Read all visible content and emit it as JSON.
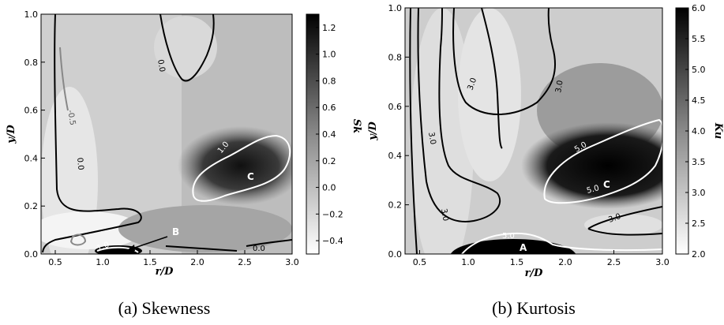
{
  "figure": {
    "caption_a": "(a) Skewness",
    "caption_b": "(b) Kurtosis"
  },
  "chart_data": [
    {
      "type": "heatmap",
      "panel": "a",
      "xlabel": "r/D",
      "ylabel": "y/D",
      "xlim": [
        0.35,
        3.0
      ],
      "ylim": [
        0.0,
        1.0
      ],
      "xticks": [
        "0.5",
        "1.0",
        "1.5",
        "2.0",
        "2.5",
        "3.0"
      ],
      "yticks": [
        "0.0",
        "0.2",
        "0.4",
        "0.6",
        "0.8",
        "1.0"
      ],
      "colorbar": {
        "label": "Sk",
        "range": [
          -0.5,
          1.3
        ],
        "ticks": [
          "1.2",
          "1.0",
          "0.8",
          "0.6",
          "0.4",
          "0.2",
          "0.0",
          "−0.2",
          "−0.4"
        ]
      },
      "contour_labels": [
        "0.0",
        "0.0",
        "0.0",
        "-0.5",
        "1.0",
        "1.0"
      ],
      "annotations": [
        "C",
        "B"
      ]
    },
    {
      "type": "heatmap",
      "panel": "b",
      "xlabel": "r/D",
      "ylabel": "y/D",
      "xlim": [
        0.35,
        3.0
      ],
      "ylim": [
        0.0,
        1.0
      ],
      "xticks": [
        "0.5",
        "1.0",
        "1.5",
        "2.0",
        "2.5",
        "3.0"
      ],
      "yticks": [
        "0.0",
        "0.2",
        "0.4",
        "0.6",
        "0.8",
        "1.0"
      ],
      "colorbar": {
        "label": "Ku",
        "range": [
          2.0,
          6.0
        ],
        "ticks": [
          "6.0",
          "5.5",
          "5.0",
          "4.5",
          "4.0",
          "3.5",
          "3.0",
          "2.5",
          "2.0"
        ]
      },
      "contour_labels": [
        "3.0",
        "3.0",
        "3.0",
        "3.0",
        "3.0",
        "5.0",
        "5.0",
        "5.0"
      ],
      "annotations": [
        "C",
        "A"
      ]
    }
  ]
}
